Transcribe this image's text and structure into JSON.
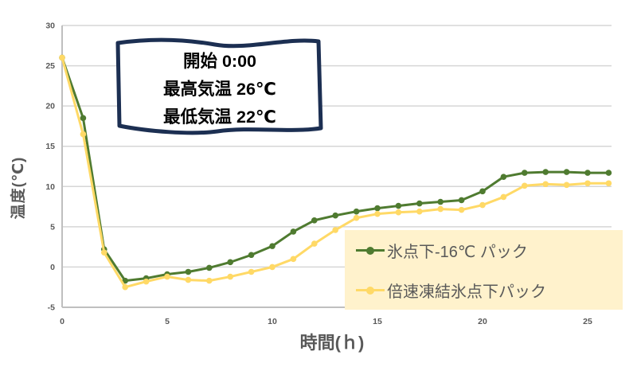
{
  "colors": {
    "series_green": "#4F7B30",
    "series_yellow": "#FFD966",
    "gridline": "#D6D6D6",
    "axis_line": "#BFBFBF",
    "axis_text": "#595959",
    "legend_bg": "#FFF2CC",
    "flag_border": "#1C2F52",
    "flag_bg": "#FFFFFF",
    "flag_text": "#000000",
    "page_bg": "#FFFFFF"
  },
  "annotation": {
    "lines": [
      "開始 0:00",
      "最高気温 26℃",
      "最低気温 22℃"
    ]
  },
  "chart_data": {
    "type": "line",
    "title": "",
    "xlabel": "時間(ｈ)",
    "ylabel": "温度(℃)",
    "xlim": [
      0,
      26
    ],
    "ylim": [
      -5,
      30
    ],
    "xticks": [
      0,
      5,
      10,
      15,
      20,
      25
    ],
    "yticks": [
      -5,
      0,
      5,
      10,
      15,
      20,
      25,
      30
    ],
    "grid": "horizontal",
    "legend_position": "inside-bottom-right",
    "x": [
      0,
      1,
      2,
      3,
      4,
      5,
      6,
      7,
      8,
      9,
      10,
      11,
      12,
      13,
      14,
      15,
      16,
      17,
      18,
      19,
      20,
      21,
      22,
      23,
      24,
      25,
      26
    ],
    "series": [
      {
        "name": "氷点下-16℃ パック",
        "color_key": "series_green",
        "values": [
          26,
          18.5,
          2.2,
          -1.7,
          -1.4,
          -0.9,
          -0.6,
          -0.1,
          0.6,
          1.5,
          2.6,
          4.4,
          5.8,
          6.4,
          6.9,
          7.3,
          7.6,
          7.9,
          8.1,
          8.3,
          9.4,
          11.2,
          11.7,
          11.8,
          11.8,
          11.7,
          11.7
        ]
      },
      {
        "name": "倍速凍結氷点下パック",
        "color_key": "series_yellow",
        "values": [
          26,
          16.5,
          1.8,
          -2.5,
          -1.8,
          -1.2,
          -1.6,
          -1.7,
          -1.2,
          -0.6,
          0.0,
          1.0,
          2.9,
          4.6,
          6.1,
          6.6,
          6.8,
          6.9,
          7.2,
          7.1,
          7.7,
          8.7,
          10.1,
          10.3,
          10.2,
          10.4,
          10.4
        ]
      }
    ]
  }
}
